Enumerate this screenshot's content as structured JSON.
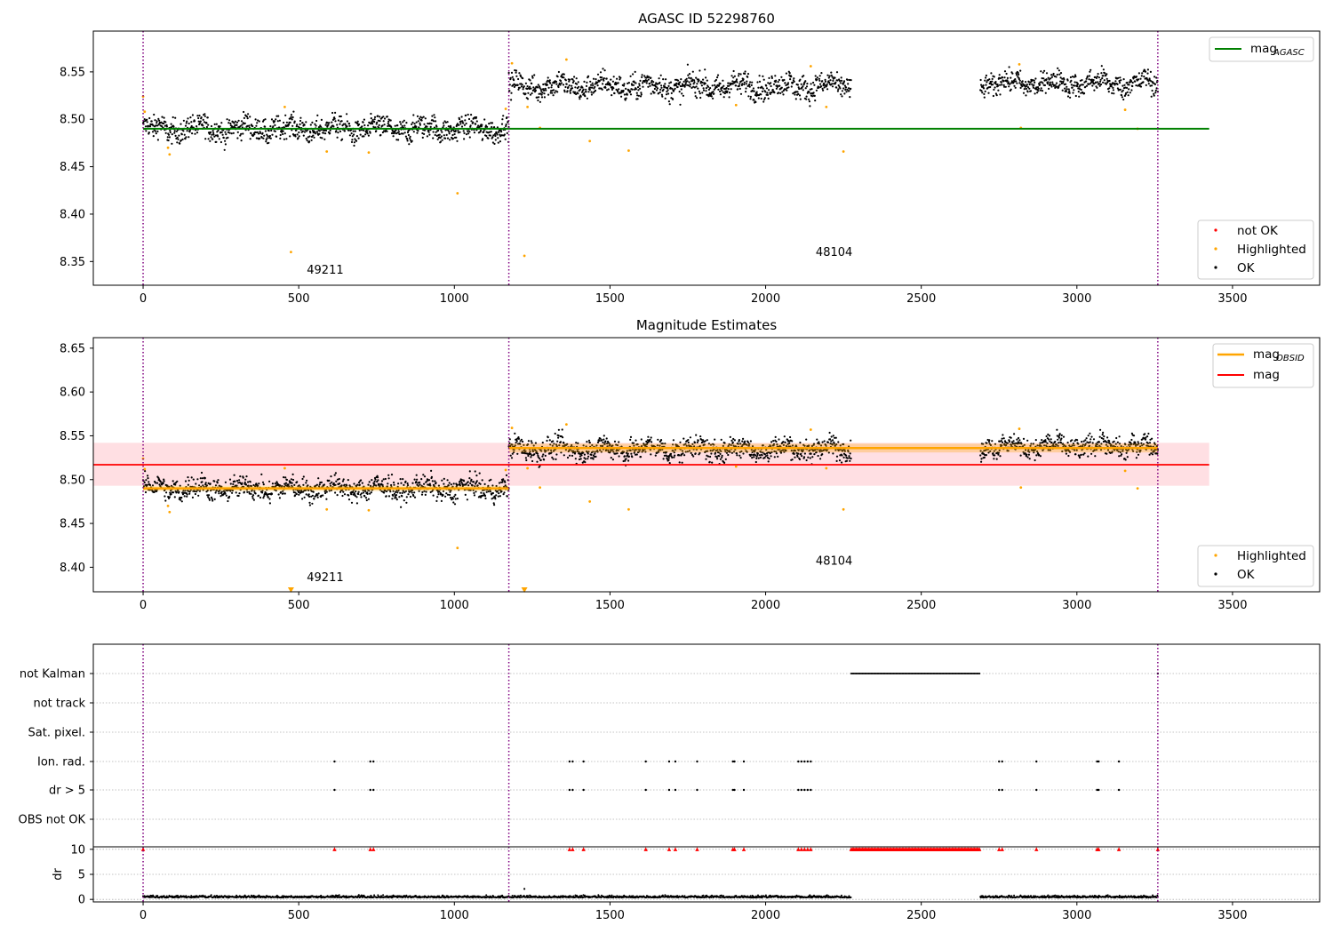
{
  "chart_data": [
    {
      "type": "scatter",
      "title": "AGASC ID 52298760",
      "xlim": [
        -160,
        3780
      ],
      "ylim": [
        8.325,
        8.593
      ],
      "x_ticks": [
        0,
        500,
        1000,
        1500,
        2000,
        2500,
        3000,
        3500
      ],
      "y_ticks": [
        8.35,
        8.4,
        8.45,
        8.5,
        8.55
      ],
      "obsid_boundaries": [
        0,
        1175,
        3260
      ],
      "obsid_labels": [
        {
          "text": "49211",
          "x": 585,
          "y": 8.337
        },
        {
          "text": "48104",
          "x": 2220,
          "y": 8.356
        }
      ],
      "lines": [
        {
          "name": "mag_AGASC",
          "label_main": "mag",
          "label_sub": "AGASC",
          "y": 8.49,
          "x_range": [
            0,
            3425
          ],
          "color": "#008000"
        }
      ],
      "series": [
        {
          "name": "not OK",
          "color": "#ff0000",
          "points": []
        },
        {
          "name": "Highlighted",
          "color": "#ffa500",
          "points": [
            [
              0,
              8.524
            ],
            [
              5,
              8.508
            ],
            [
              80,
              8.47
            ],
            [
              85,
              8.463
            ],
            [
              455,
              8.513
            ],
            [
              475,
              8.36
            ],
            [
              590,
              8.466
            ],
            [
              725,
              8.465
            ],
            [
              1010,
              8.422
            ],
            [
              1165,
              8.511
            ],
            [
              1185,
              8.559
            ],
            [
              1225,
              8.356
            ],
            [
              1235,
              8.513
            ],
            [
              1275,
              8.491
            ],
            [
              1360,
              8.563
            ],
            [
              1435,
              8.477
            ],
            [
              1560,
              8.467
            ],
            [
              1905,
              8.515
            ],
            [
              2145,
              8.556
            ],
            [
              2195,
              8.513
            ],
            [
              2250,
              8.466
            ],
            [
              2815,
              8.558
            ],
            [
              2820,
              8.491
            ],
            [
              3155,
              8.51
            ],
            [
              3195,
              8.49
            ]
          ]
        },
        {
          "name": "OK",
          "color": "#000000",
          "segments": [
            {
              "x": [
                0,
                1175
              ],
              "mean": 8.49,
              "spread": 0.011
            },
            {
              "x": [
                1175,
                2275
              ],
              "mean": 8.535,
              "spread": 0.011
            },
            {
              "x": [
                2690,
                3260
              ],
              "mean": 8.538,
              "spread": 0.01
            }
          ]
        }
      ],
      "legends": [
        {
          "entries": [
            "mag_AGASC"
          ],
          "position": "upper right"
        },
        {
          "entries": [
            "not OK",
            "Highlighted",
            "OK"
          ],
          "position": "lower right"
        }
      ]
    },
    {
      "type": "scatter",
      "title": "Magnitude Estimates",
      "xlim": [
        -160,
        3780
      ],
      "ylim": [
        8.372,
        8.662
      ],
      "x_ticks": [
        0,
        500,
        1000,
        1500,
        2000,
        2500,
        3000,
        3500
      ],
      "y_ticks": [
        8.4,
        8.45,
        8.5,
        8.55,
        8.6,
        8.65
      ],
      "obsid_boundaries": [
        0,
        1175,
        3260
      ],
      "obsid_labels": [
        {
          "text": "49211",
          "x": 585,
          "y": 8.384
        },
        {
          "text": "48104",
          "x": 2220,
          "y": 8.403
        }
      ],
      "lines": [
        {
          "name": "mag_OBSID",
          "label_main": "mag",
          "label_sub": "OBSID",
          "color": "#ffa500",
          "segments": [
            {
              "x": [
                0,
                1175
              ],
              "y": 8.49,
              "band": 0.003
            },
            {
              "x": [
                1175,
                3260
              ],
              "y": 8.536,
              "band": 0.005
            }
          ]
        },
        {
          "name": "mag",
          "label_main": "mag",
          "label_sub": "",
          "y": 8.517,
          "band": [
            8.493,
            8.542
          ],
          "x_range": [
            -160,
            3425
          ],
          "color": "#ff0000"
        }
      ],
      "series": [
        {
          "name": "Highlighted",
          "color": "#ffa500",
          "points": [
            [
              0,
              8.524
            ],
            [
              5,
              8.512
            ],
            [
              80,
              8.47
            ],
            [
              85,
              8.463
            ],
            [
              455,
              8.513
            ],
            [
              590,
              8.466
            ],
            [
              725,
              8.465
            ],
            [
              1010,
              8.422
            ],
            [
              1165,
              8.511
            ],
            [
              1185,
              8.559
            ],
            [
              1235,
              8.513
            ],
            [
              1275,
              8.491
            ],
            [
              1360,
              8.563
            ],
            [
              1435,
              8.475
            ],
            [
              1560,
              8.466
            ],
            [
              1905,
              8.515
            ],
            [
              2145,
              8.557
            ],
            [
              2195,
              8.513
            ],
            [
              2250,
              8.466
            ],
            [
              2815,
              8.558
            ],
            [
              2820,
              8.491
            ],
            [
              3155,
              8.51
            ],
            [
              3195,
              8.49
            ]
          ]
        },
        {
          "name": "Highlighted (below axis)",
          "color": "#ffa500",
          "marker": "triangle-down",
          "points": [
            [
              475,
              8.372
            ],
            [
              1225,
              8.372
            ]
          ]
        },
        {
          "name": "OK",
          "color": "#000000",
          "segments": [
            {
              "x": [
                0,
                1175
              ],
              "mean": 8.49,
              "spread": 0.011
            },
            {
              "x": [
                1175,
                2275
              ],
              "mean": 8.535,
              "spread": 0.011
            },
            {
              "x": [
                2690,
                3260
              ],
              "mean": 8.538,
              "spread": 0.01
            }
          ]
        }
      ],
      "legends": [
        {
          "entries": [
            "mag_OBSID",
            "mag"
          ],
          "position": "upper right"
        },
        {
          "entries": [
            "Highlighted",
            "OK"
          ],
          "position": "lower right"
        }
      ]
    },
    {
      "type": "scatter",
      "title": "",
      "xlim": [
        -160,
        3780
      ],
      "x_ticks": [
        0,
        500,
        1000,
        1500,
        2000,
        2500,
        3000,
        3500
      ],
      "obsid_boundaries": [
        0,
        1175,
        3260
      ],
      "flag_labels": [
        "not Kalman",
        "not track",
        "Sat. pixel.",
        "Ion. rad.",
        "dr > 5",
        "OBS not OK"
      ],
      "flags": {
        "not Kalman": {
          "ranges": [
            [
              2275,
              2690
            ]
          ],
          "x": [
            3260
          ]
        },
        "not track": {
          "x": []
        },
        "Sat. pixel.": {
          "x": []
        },
        "Ion. rad.": {
          "x": [
            615,
            730,
            740,
            1370,
            1380,
            1415,
            1615,
            1690,
            1710,
            1780,
            1895,
            1900,
            1930,
            2105,
            2115,
            2125,
            2135,
            2145,
            2750,
            2760,
            2870,
            3065,
            3070,
            3135
          ]
        },
        "dr > 5": {
          "x": [
            615,
            730,
            740,
            1370,
            1380,
            1415,
            1615,
            1690,
            1710,
            1780,
            1895,
            1900,
            1930,
            2105,
            2115,
            2125,
            2135,
            2145,
            2750,
            2760,
            2870,
            3065,
            3070,
            3135
          ]
        },
        "OBS not OK": {
          "x": []
        }
      },
      "dr_panel": {
        "ylabel": "dr",
        "y_ticks": [
          0,
          5,
          10
        ],
        "ylim": [
          -0.5,
          10.5
        ],
        "clipped_marker": "triangle-up",
        "clipped_color": "#ff0000",
        "clipped_x": [
          0,
          615,
          730,
          740,
          1370,
          1380,
          1415,
          1615,
          1690,
          1710,
          1780,
          1895,
          1900,
          1930,
          2105,
          2115,
          2125,
          2135,
          2145,
          2750,
          2760,
          2870,
          3065,
          3070,
          3135,
          3260
        ],
        "clipped_ranges": [
          [
            2275,
            2690
          ]
        ],
        "ok_segments": [
          [
            0,
            2275,
            0.35
          ],
          [
            2690,
            3260,
            0.35
          ]
        ],
        "outliers": [
          [
            1225,
            2.1
          ]
        ]
      }
    }
  ]
}
